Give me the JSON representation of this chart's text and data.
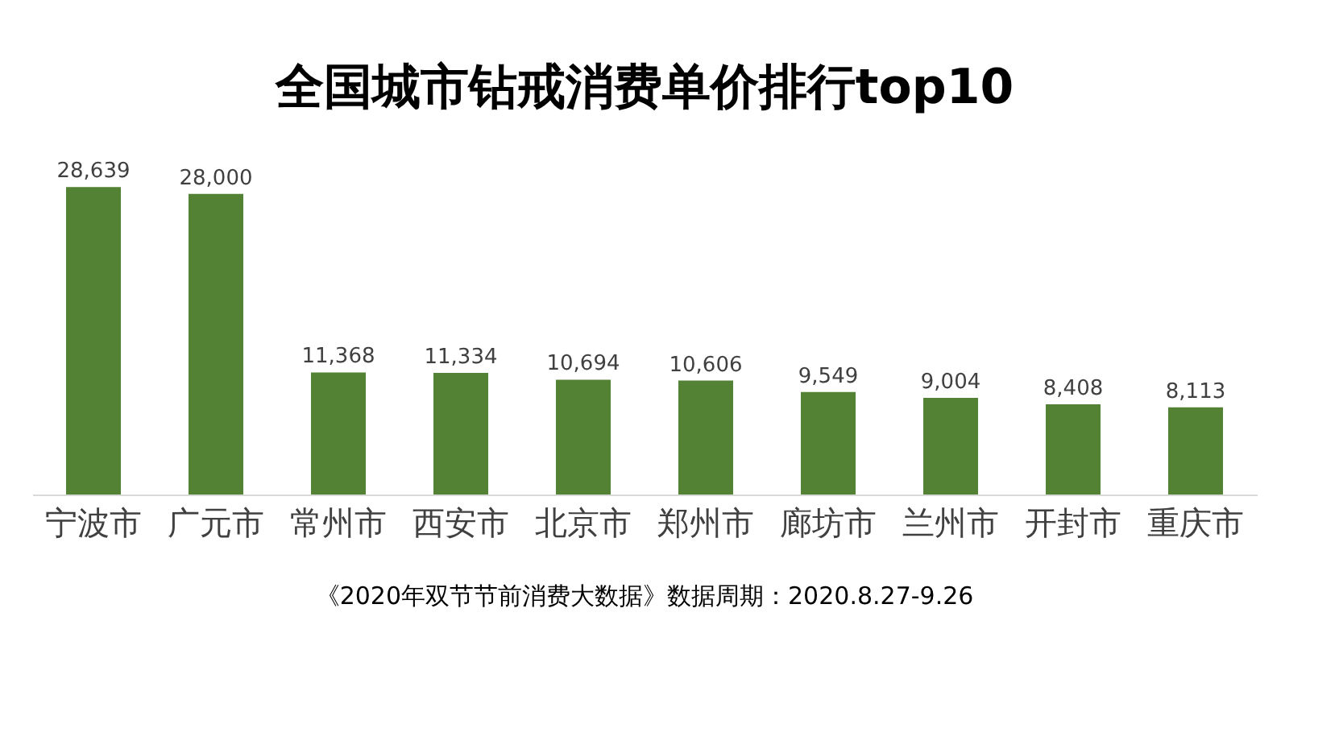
{
  "chart_data": {
    "type": "bar",
    "title": "全国城市钻戒消费单价排行top10",
    "categories": [
      "宁波市",
      "广元市",
      "常州市",
      "西安市",
      "北京市",
      "郑州市",
      "廊坊市",
      "兰州市",
      "开封市",
      "重庆市"
    ],
    "values": [
      28639,
      28000,
      11368,
      11334,
      10694,
      10606,
      9549,
      9004,
      8408,
      8113
    ],
    "value_labels": [
      "28,639",
      "28,000",
      "11,368",
      "11,334",
      "10,694",
      "10,606",
      "9,549",
      "9,004",
      "8,408",
      "8,113"
    ],
    "color": "#548235",
    "grid": false,
    "annotations": [
      "《2020年双节节前消费大数据》数据周期：2020.8.27-9.26"
    ]
  }
}
